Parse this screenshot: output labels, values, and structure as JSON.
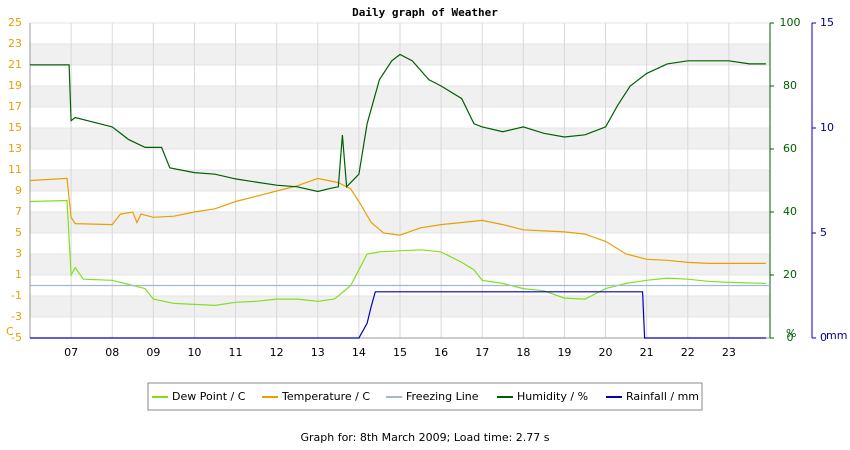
{
  "chart_data": {
    "type": "line",
    "title": "Daily graph of Weather",
    "footer": "Graph for: 8th March 2009; Load time: 2.77 s",
    "y_unit": "C",
    "y2_unit": "%",
    "y3_unit": "mm",
    "xlim": [
      6,
      24
    ],
    "xticks": [
      {
        "value": 7,
        "label": "07"
      },
      {
        "value": 8,
        "label": "08"
      },
      {
        "value": 9,
        "label": "09"
      },
      10,
      11,
      12,
      13,
      14,
      15,
      16,
      17,
      18,
      19,
      20,
      21,
      22,
      23
    ],
    "ylim": [
      -5,
      25
    ],
    "yticks": [
      -5,
      -3,
      -1,
      1,
      3,
      5,
      7,
      9,
      11,
      13,
      15,
      17,
      19,
      21,
      23,
      25
    ],
    "y2lim": [
      0,
      100
    ],
    "y2ticks": [
      0,
      20,
      40,
      60,
      80,
      100
    ],
    "y3lim": [
      0,
      15
    ],
    "y3ticks": [
      0,
      5,
      10,
      15
    ],
    "grid": true,
    "series": [
      {
        "name": "Dew Point / C",
        "color": "#80e020",
        "x": [
          6.0,
          6.9,
          7.0,
          7.1,
          7.3,
          8,
          8.5,
          8.8,
          9,
          9.5,
          10,
          10.5,
          11,
          11.5,
          12,
          12.5,
          13,
          13.4,
          13.5,
          13.8,
          14,
          14.2,
          14.5,
          15,
          15.5,
          16,
          16.5,
          16.8,
          17,
          17.5,
          18,
          18.5,
          19,
          19.5,
          20,
          20.5,
          21,
          21.5,
          22,
          22.5,
          23,
          23.9
        ],
        "values": [
          8,
          8.1,
          1,
          1.7,
          0.6,
          0.5,
          0,
          -0.3,
          -1.3,
          -1.7,
          -1.8,
          -1.9,
          -1.6,
          -1.5,
          -1.3,
          -1.3,
          -1.5,
          -1.3,
          -1,
          0,
          1.5,
          3,
          3.2,
          3.3,
          3.4,
          3.2,
          2.2,
          1.5,
          0.5,
          0.2,
          -0.3,
          -0.5,
          -1.2,
          -1.3,
          -0.3,
          0.2,
          0.5,
          0.7,
          0.6,
          0.4,
          0.3,
          0.2
        ]
      },
      {
        "name": "Temperature / C",
        "color": "#e8a000",
        "x": [
          6.0,
          6.9,
          7.0,
          7.1,
          8.0,
          8.2,
          8.5,
          8.6,
          8.7,
          9.0,
          9.5,
          10,
          10.5,
          11,
          11.5,
          12,
          12.5,
          13,
          13.5,
          13.8,
          14,
          14.3,
          14.6,
          15,
          15.5,
          16,
          16.5,
          17,
          17.5,
          18,
          18.5,
          19,
          19.5,
          20,
          20.5,
          21,
          21.5,
          22,
          22.5,
          23,
          23.9
        ],
        "values": [
          10,
          10.2,
          6.5,
          5.9,
          5.8,
          6.8,
          7,
          6,
          6.8,
          6.5,
          6.6,
          7,
          7.3,
          8,
          8.5,
          9,
          9.5,
          10.2,
          9.8,
          9.2,
          8,
          6,
          5,
          4.8,
          5.5,
          5.8,
          6,
          6.2,
          5.8,
          5.3,
          5.2,
          5.1,
          4.9,
          4.2,
          3,
          2.5,
          2.4,
          2.2,
          2.1,
          2.1,
          2.1
        ]
      },
      {
        "name": "Freezing Line",
        "color": "#a0b8d0",
        "x": [
          6,
          24
        ],
        "values": [
          0,
          0
        ]
      },
      {
        "name": "Humidity / %",
        "color": "#006000",
        "axis": "y2",
        "x": [
          6.0,
          6.95,
          7.0,
          7.1,
          8,
          8.4,
          8.8,
          9.2,
          9.4,
          10,
          10.5,
          11,
          11.5,
          12,
          12.5,
          13,
          13.3,
          13.5,
          13.6,
          13.7,
          14,
          14.2,
          14.5,
          14.8,
          15,
          15.3,
          15.7,
          16,
          16.5,
          16.8,
          17,
          17.5,
          18,
          18.5,
          19,
          19.5,
          20,
          20.3,
          20.6,
          21,
          21.5,
          22,
          22.5,
          23,
          23.5,
          23.9
        ],
        "values": [
          86.7,
          86.7,
          69,
          70,
          67,
          63,
          60.5,
          60.5,
          54,
          52.5,
          52,
          50.5,
          49.5,
          48.5,
          48,
          46.5,
          47.5,
          48,
          64.4,
          48,
          52,
          68,
          82,
          88,
          90,
          88,
          82,
          80,
          76,
          68,
          67,
          65.5,
          67,
          65,
          63.8,
          64.5,
          67,
          74,
          80,
          84,
          87,
          88,
          88,
          88,
          87,
          87
        ]
      },
      {
        "name": "Rainfall / mm",
        "color": "#0000c0",
        "axis": "y3",
        "x": [
          6,
          14.0,
          14.2,
          14.3,
          14.4,
          20.9,
          20.95,
          23.9
        ],
        "values": [
          0,
          0,
          0.7,
          1.5,
          2.2,
          2.2,
          0,
          0
        ]
      }
    ]
  }
}
